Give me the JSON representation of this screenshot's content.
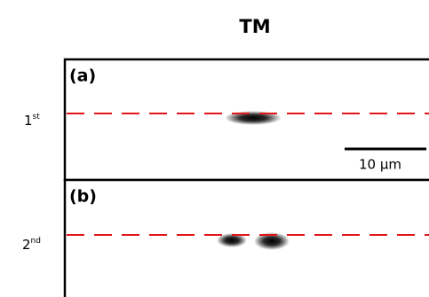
{
  "title": "TM",
  "panels": [
    {
      "label": "(a)",
      "row_label": {
        "base": "1",
        "sup": "st"
      },
      "scale_bar": "10 µm"
    },
    {
      "label": "(b)",
      "row_label": {
        "base": "2",
        "sup": "nd"
      }
    }
  ]
}
